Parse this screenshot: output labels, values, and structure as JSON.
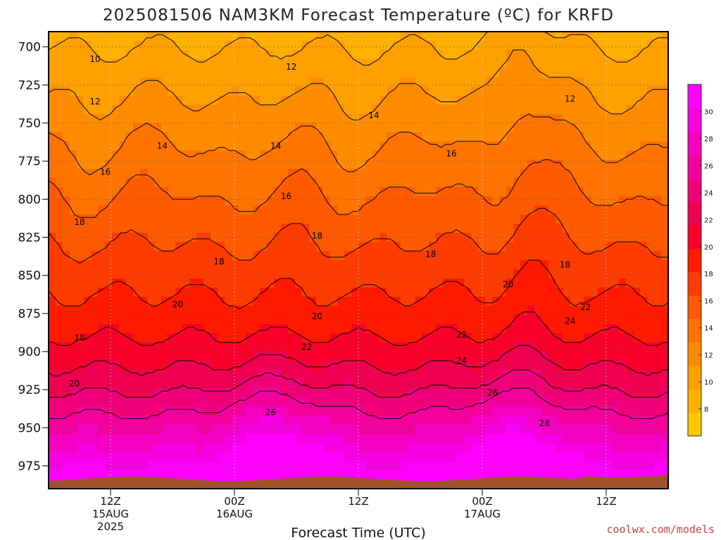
{
  "chart_data": {
    "type": "heatmap",
    "title": "2025081506 NAM3KM Forecast Temperature (ºC) for KRFD",
    "xlabel": "Forecast Time (UTC)",
    "ylabel": "",
    "credit": "coolwx.com/models",
    "x_ticks": [
      {
        "label": "12Z",
        "sub": [
          "15AUG",
          "2025"
        ],
        "hour": 12
      },
      {
        "label": "00Z",
        "sub": [
          "16AUG"
        ],
        "hour": 24
      },
      {
        "label": "12Z",
        "sub": [],
        "hour": 36
      },
      {
        "label": "00Z",
        "sub": [
          "17AUG"
        ],
        "hour": 48
      },
      {
        "label": "12Z",
        "sub": [],
        "hour": 60
      }
    ],
    "xlim": [
      6,
      66
    ],
    "ylim": [
      990,
      690
    ],
    "y_ticks": [
      700,
      725,
      750,
      775,
      800,
      825,
      850,
      875,
      900,
      925,
      950,
      975
    ],
    "colorbar": {
      "ticks": [
        8,
        10,
        12,
        14,
        16,
        18,
        20,
        22,
        24,
        26,
        28,
        30
      ],
      "range": [
        6,
        32
      ],
      "colors": [
        "#ffc800",
        "#ffb000",
        "#ffa000",
        "#ff8c00",
        "#ff7400",
        "#ff5a00",
        "#ff3c00",
        "#ff1a00",
        "#f7002a",
        "#ef0050",
        "#f00078",
        "#f2009c",
        "#f400c0",
        "#f500e0",
        "#ff00ff"
      ]
    },
    "contour_levels": [
      10,
      12,
      14,
      16,
      18,
      20,
      22,
      24,
      26,
      28
    ],
    "contour_labels": [
      {
        "text": "10",
        "hour": 10.5,
        "pressure": 708
      },
      {
        "text": "12",
        "hour": 10.5,
        "pressure": 736
      },
      {
        "text": "12",
        "hour": 29.5,
        "pressure": 713
      },
      {
        "text": "12",
        "hour": 56.5,
        "pressure": 734
      },
      {
        "text": "14",
        "hour": 17,
        "pressure": 765
      },
      {
        "text": "14",
        "hour": 28,
        "pressure": 765
      },
      {
        "text": "14",
        "hour": 37.5,
        "pressure": 745
      },
      {
        "text": "16",
        "hour": 11.5,
        "pressure": 782
      },
      {
        "text": "16",
        "hour": 29,
        "pressure": 798
      },
      {
        "text": "16",
        "hour": 45,
        "pressure": 770
      },
      {
        "text": "18",
        "hour": 9,
        "pressure": 815
      },
      {
        "text": "18",
        "hour": 22.5,
        "pressure": 841
      },
      {
        "text": "18",
        "hour": 32,
        "pressure": 824
      },
      {
        "text": "18",
        "hour": 43,
        "pressure": 836
      },
      {
        "text": "18",
        "hour": 56,
        "pressure": 843
      },
      {
        "text": "18",
        "hour": 9,
        "pressure": 891
      },
      {
        "text": "20",
        "hour": 18.5,
        "pressure": 869
      },
      {
        "text": "20",
        "hour": 32,
        "pressure": 877
      },
      {
        "text": "20",
        "hour": 8.5,
        "pressure": 921
      },
      {
        "text": "20",
        "hour": 50.5,
        "pressure": 856
      },
      {
        "text": "22",
        "hour": 31,
        "pressure": 897
      },
      {
        "text": "22",
        "hour": 46,
        "pressure": 889
      },
      {
        "text": "22",
        "hour": 58,
        "pressure": 871
      },
      {
        "text": "24",
        "hour": 46,
        "pressure": 906
      },
      {
        "text": "24",
        "hour": 56.5,
        "pressure": 880
      },
      {
        "text": "26",
        "hour": 27.5,
        "pressure": 940
      },
      {
        "text": "26",
        "hour": 49,
        "pressure": 927
      },
      {
        "text": "28",
        "hour": 54,
        "pressure": 947
      }
    ]
  }
}
